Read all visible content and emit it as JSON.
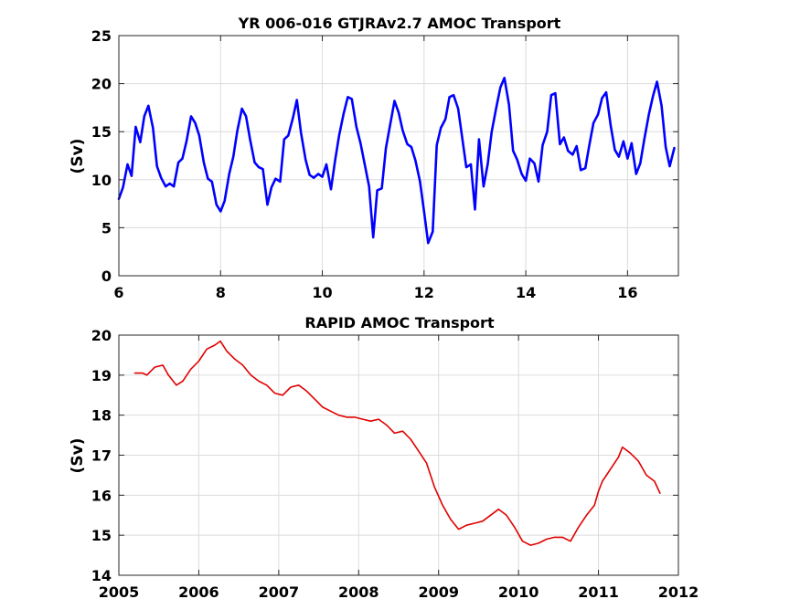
{
  "chart_data": [
    {
      "type": "line",
      "title": "YR 006-016 GTJRAv2.7 AMOC Transport",
      "xlabel": "",
      "ylabel": "(Sv)",
      "xlim": [
        6,
        17
      ],
      "ylim": [
        0,
        25
      ],
      "xticks": [
        6,
        8,
        10,
        12,
        14,
        16
      ],
      "yticks": [
        0,
        5,
        10,
        15,
        20,
        25
      ],
      "grid": true,
      "color": "#0000ff",
      "series": [
        {
          "x": [
            6.0,
            6.08,
            6.17,
            6.25,
            6.33,
            6.42,
            6.5,
            6.58,
            6.67,
            6.75,
            6.83,
            6.92,
            7.0,
            7.08,
            7.17,
            7.25,
            7.33,
            7.42,
            7.5,
            7.58,
            7.67,
            7.75,
            7.83,
            7.92,
            8.0,
            8.08,
            8.17,
            8.25,
            8.33,
            8.42,
            8.5,
            8.58,
            8.67,
            8.75,
            8.83,
            8.92,
            9.0,
            9.08,
            9.17,
            9.25,
            9.33,
            9.42,
            9.5,
            9.58,
            9.67,
            9.75,
            9.83,
            9.92,
            10.0,
            10.08,
            10.17,
            10.25,
            10.33,
            10.42,
            10.5,
            10.58,
            10.67,
            10.75,
            10.83,
            10.92,
            11.0,
            11.08,
            11.17,
            11.25,
            11.33,
            11.42,
            11.5,
            11.58,
            11.67,
            11.75,
            11.83,
            11.92,
            12.0,
            12.08,
            12.17,
            12.25,
            12.33,
            12.42,
            12.5,
            12.58,
            12.67,
            12.75,
            12.83,
            12.92,
            13.0,
            13.08,
            13.17,
            13.25,
            13.33,
            13.42,
            13.5,
            13.58,
            13.67,
            13.75,
            13.83,
            13.92,
            14.0,
            14.08,
            14.17,
            14.25,
            14.33,
            14.42,
            14.5,
            14.58,
            14.67,
            14.75,
            14.83,
            14.92,
            15.0,
            15.08,
            15.17,
            15.25,
            15.33,
            15.42,
            15.5,
            15.58,
            15.67,
            15.75,
            15.83,
            15.92,
            16.0,
            16.08,
            16.17,
            16.25,
            16.33,
            16.42,
            16.5,
            16.58,
            16.67,
            16.75,
            16.83,
            16.92
          ],
          "y": [
            8.0,
            9.2,
            11.6,
            10.4,
            15.5,
            13.9,
            16.6,
            17.7,
            15.4,
            11.4,
            10.2,
            9.3,
            9.6,
            9.3,
            11.8,
            12.2,
            14.0,
            16.6,
            15.9,
            14.6,
            11.8,
            10.1,
            9.8,
            7.4,
            6.7,
            7.8,
            10.6,
            12.4,
            15.1,
            17.4,
            16.6,
            14.2,
            11.8,
            11.3,
            11.1,
            7.4,
            9.2,
            10.1,
            9.8,
            14.2,
            14.6,
            16.4,
            18.3,
            14.9,
            12.1,
            10.5,
            10.2,
            10.6,
            10.3,
            11.6,
            9.0,
            12.0,
            14.6,
            16.9,
            18.6,
            18.4,
            15.5,
            13.8,
            11.7,
            9.3,
            4.0,
            8.9,
            9.1,
            13.3,
            15.6,
            18.2,
            17.0,
            15.1,
            13.7,
            13.4,
            12.0,
            9.8,
            6.7,
            3.4,
            4.6,
            13.6,
            15.4,
            16.3,
            18.6,
            18.8,
            17.4,
            14.4,
            11.3,
            11.6,
            6.9,
            14.2,
            9.3,
            11.6,
            15.0,
            17.5,
            19.6,
            20.6,
            17.8,
            13.0,
            12.1,
            10.6,
            9.9,
            12.2,
            11.7,
            9.8,
            13.6,
            15.0,
            18.8,
            19.0,
            13.7,
            14.4,
            13.0,
            12.6,
            13.5,
            11.0,
            11.2,
            13.6,
            15.9,
            16.8,
            18.5,
            19.1,
            15.6,
            13.1,
            12.4,
            14.0,
            12.2,
            13.8,
            10.6,
            11.7,
            14.2,
            16.8,
            18.7,
            20.2,
            17.7,
            13.4,
            11.4,
            13.3
          ]
        }
      ]
    },
    {
      "type": "line",
      "title": "RAPID AMOC Transport",
      "xlabel": "",
      "ylabel": "(Sv)",
      "xlim": [
        2005,
        2012
      ],
      "ylim": [
        14,
        20
      ],
      "xticks": [
        2005,
        2006,
        2007,
        2008,
        2009,
        2010,
        2011,
        2012
      ],
      "yticks": [
        14,
        15,
        16,
        17,
        18,
        19,
        20
      ],
      "grid": true,
      "color": "#e00000",
      "series": [
        {
          "x": [
            2005.2,
            2005.3,
            2005.35,
            2005.45,
            2005.55,
            2005.62,
            2005.72,
            2005.8,
            2005.9,
            2006.0,
            2006.1,
            2006.2,
            2006.27,
            2006.35,
            2006.45,
            2006.55,
            2006.65,
            2006.75,
            2006.85,
            2006.95,
            2007.05,
            2007.15,
            2007.25,
            2007.35,
            2007.45,
            2007.55,
            2007.65,
            2007.75,
            2007.85,
            2007.95,
            2008.05,
            2008.15,
            2008.25,
            2008.35,
            2008.45,
            2008.55,
            2008.65,
            2008.75,
            2008.85,
            2008.95,
            2009.05,
            2009.15,
            2009.25,
            2009.35,
            2009.45,
            2009.55,
            2009.65,
            2009.75,
            2009.85,
            2009.95,
            2010.05,
            2010.15,
            2010.25,
            2010.35,
            2010.45,
            2010.55,
            2010.65,
            2010.75,
            2010.85,
            2010.95,
            2011.0,
            2011.05,
            2011.15,
            2011.25,
            2011.3,
            2011.4,
            2011.5,
            2011.6,
            2011.7,
            2011.77
          ],
          "y": [
            19.05,
            19.05,
            19.0,
            19.2,
            19.25,
            19.0,
            18.75,
            18.85,
            19.15,
            19.35,
            19.65,
            19.75,
            19.85,
            19.6,
            19.4,
            19.25,
            19.0,
            18.85,
            18.75,
            18.55,
            18.5,
            18.7,
            18.75,
            18.6,
            18.4,
            18.2,
            18.1,
            18.0,
            17.95,
            17.95,
            17.9,
            17.85,
            17.9,
            17.75,
            17.55,
            17.6,
            17.4,
            17.1,
            16.8,
            16.2,
            15.75,
            15.4,
            15.15,
            15.25,
            15.3,
            15.35,
            15.5,
            15.65,
            15.5,
            15.2,
            14.85,
            14.75,
            14.8,
            14.9,
            14.95,
            14.95,
            14.85,
            15.2,
            15.5,
            15.75,
            16.1,
            16.35,
            16.65,
            16.95,
            17.2,
            17.05,
            16.85,
            16.5,
            16.35,
            16.05
          ]
        }
      ]
    }
  ]
}
